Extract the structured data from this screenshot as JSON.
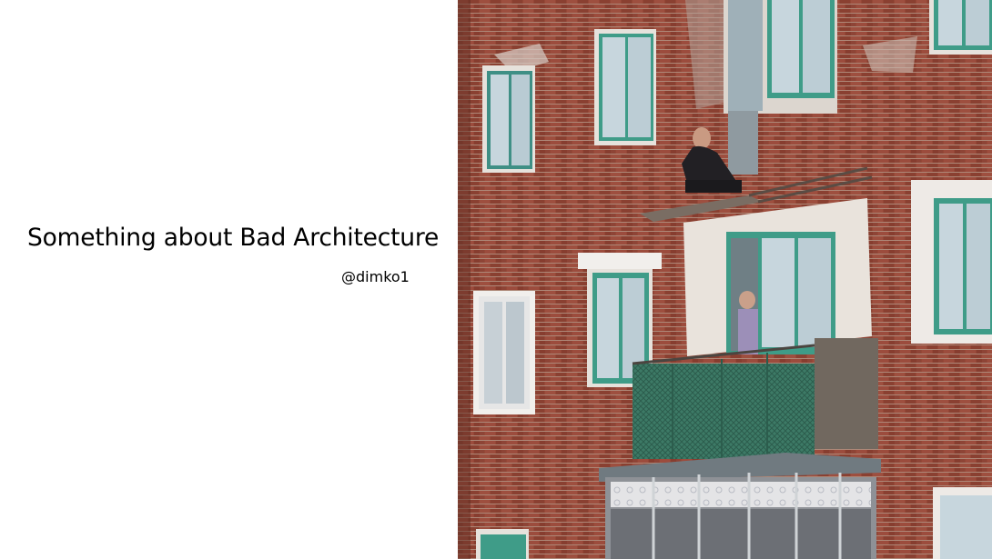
{
  "slide": {
    "title": "Something about Bad Architecture",
    "author": "@dimko1"
  },
  "photo": {
    "subject": "brick-apartment-building-photo",
    "colors": {
      "brick": "#9b4a3a",
      "brick_dark": "#7e3a2d",
      "mortar": "#c9b3a6",
      "window_frame": "#3f9c88",
      "glass": "#c7d6dd",
      "balcony_green": "#3d7a66"
    }
  }
}
